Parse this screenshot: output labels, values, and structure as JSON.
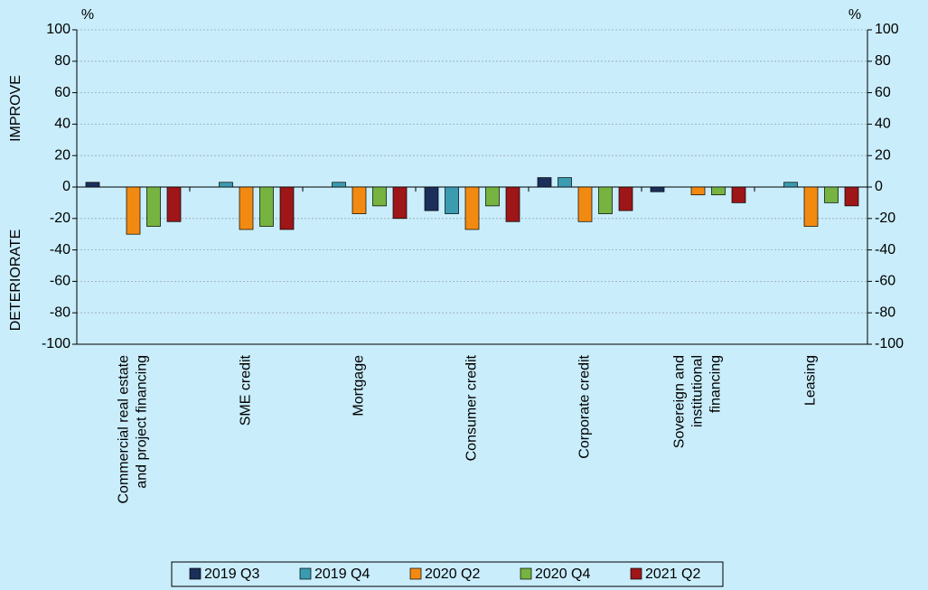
{
  "chart_data": {
    "type": "bar",
    "unit_left": "%",
    "unit_right": "%",
    "y_label_top": "IMPROVE",
    "y_label_bottom": "DETERIORATE",
    "categories": [
      "Commercial real estate and project financing",
      "SME credit",
      "Mortgage",
      "Consumer credit",
      "Corporate credit",
      "Sovereign and institutional financing",
      "Leasing"
    ],
    "series": [
      {
        "name": "2019 Q3",
        "color": "#1b2f5a",
        "values": [
          3,
          0,
          0,
          -15,
          6,
          -3,
          0
        ]
      },
      {
        "name": "2019 Q4",
        "color": "#3b9bb0",
        "values": [
          0,
          3,
          3,
          -17,
          6,
          0,
          3
        ]
      },
      {
        "name": "2020 Q2",
        "color": "#f28a12",
        "values": [
          -30,
          -27,
          -17,
          -27,
          -22,
          -5,
          -25
        ]
      },
      {
        "name": "2020 Q4",
        "color": "#76b341",
        "values": [
          -25,
          -25,
          -12,
          -12,
          -17,
          -5,
          -10
        ]
      },
      {
        "name": "2021 Q2",
        "color": "#9e1618",
        "values": [
          -22,
          -27,
          -20,
          -22,
          -15,
          -10,
          -12
        ]
      }
    ],
    "ylim": [
      -100,
      100
    ],
    "yticks": [
      -100,
      -80,
      -60,
      -40,
      -20,
      0,
      20,
      40,
      60,
      80,
      100
    ],
    "y2lim": [
      -100,
      100
    ],
    "y2ticks": [
      -100,
      -80,
      -60,
      -40,
      -20,
      0,
      20,
      40,
      60,
      80,
      100
    ],
    "grid": true,
    "legend": "bottom"
  }
}
